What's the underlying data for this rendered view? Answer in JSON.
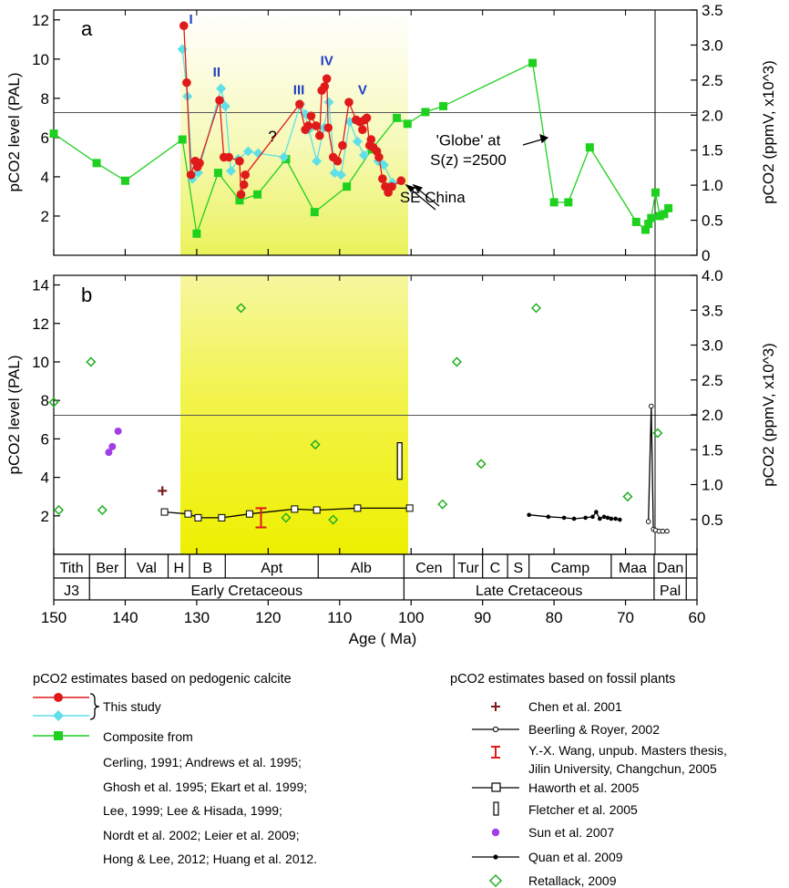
{
  "chart_data": [
    {
      "type": "line",
      "panel_label": "a",
      "xlabel": "Age ( Ma)",
      "x_range": [
        150,
        60
      ],
      "ylabel_left": "pCO2 level (PAL)",
      "ylabel_right": "pCO2 (ppmV, x10^3)",
      "ylim_left": [
        0,
        12.5
      ],
      "ylim_right": [
        0,
        3.5
      ],
      "yticks_left": [
        "2",
        "4",
        "6",
        "8",
        "10",
        "12"
      ],
      "yticks_right": [
        "0",
        "0.5",
        "1.0",
        "1.5",
        "2.0",
        "2.5",
        "3.0",
        "3.5"
      ],
      "reference_line_pal": 7.5,
      "shaded_interval_ma": [
        132,
        101
      ],
      "vertical_line_ma": 66,
      "series": [
        {
          "color": "#e01a1a",
          "x": [
            131.8,
            131.4,
            130.8,
            130.2,
            129.9,
            129.6,
            126.8,
            126.2,
            125.5,
            124.0,
            123.8,
            123.4,
            123.2,
            115.6,
            114.8,
            114.4,
            114.0,
            113.3,
            112.8,
            112.5,
            112.1,
            111.8,
            111.6,
            110.9,
            110.3,
            109.6,
            108.7,
            107.7,
            107.2,
            106.8,
            106.5,
            106.2,
            105.8,
            105.6,
            105.3,
            104.8,
            104.5,
            104.0,
            103.6,
            103.2,
            102.7,
            101.4
          ],
          "y": [
            11.7,
            8.8,
            4.1,
            4.8,
            4.5,
            4.7,
            7.9,
            5.0,
            5.0,
            4.8,
            3.1,
            3.6,
            4.1,
            7.7,
            6.4,
            6.6,
            7.1,
            6.6,
            6.1,
            8.4,
            8.6,
            9.0,
            6.5,
            5.0,
            4.8,
            5.6,
            7.8,
            6.9,
            6.8,
            6.4,
            6.9,
            7.0,
            5.6,
            5.9,
            5.5,
            5.3,
            5.0,
            3.9,
            3.5,
            3.2,
            3.5,
            3.8
          ]
        },
        {
          "color": "#5fe0e8",
          "x": [
            132.0,
            131.3,
            130.6,
            129.8,
            126.6,
            126.0,
            125.2,
            124.2,
            122.8,
            121.4,
            117.8,
            115.5,
            114.8,
            114.3,
            113.2,
            112.2,
            111.5,
            110.7,
            109.8,
            108.6,
            107.5,
            106.6,
            105.6,
            104.6,
            103.8,
            102.6
          ],
          "y": [
            10.5,
            8.1,
            3.9,
            4.2,
            8.5,
            7.6,
            4.3,
            4.9,
            5.3,
            5.2,
            5.0,
            7.7,
            7.2,
            6.4,
            4.8,
            6.5,
            7.8,
            4.2,
            4.1,
            6.8,
            5.8,
            5.1,
            5.6,
            4.8,
            4.6,
            3.7
          ]
        },
        {
          "color": "#1fd11f",
          "x": [
            150,
            144,
            140,
            132,
            130,
            127,
            124,
            121.5,
            117.5,
            113.5,
            109,
            105.5,
            102,
            100.5,
            98,
            95.5,
            83,
            80,
            78,
            75,
            68.5,
            67.2,
            66.8,
            66.4,
            65.8,
            65.2,
            64.6,
            64
          ],
          "y": [
            6.2,
            4.7,
            3.8,
            5.9,
            1.1,
            4.2,
            2.8,
            3.1,
            4.9,
            2.2,
            3.5,
            5.4,
            7.0,
            6.7,
            7.3,
            7.6,
            9.8,
            2.7,
            2.7,
            5.5,
            1.7,
            1.3,
            1.6,
            1.9,
            3.2,
            2.0,
            2.1,
            2.4
          ]
        }
      ],
      "annotations": [
        {
          "text": "I",
          "x": 130.8,
          "y": 11.8
        },
        {
          "text": "II",
          "x": 127.2,
          "y": 9.1
        },
        {
          "text": "III",
          "x": 115.7,
          "y": 8.2
        },
        {
          "text": "IV",
          "x": 111.8,
          "y": 9.7
        },
        {
          "text": "V",
          "x": 106.8,
          "y": 8.2
        },
        {
          "text": "?",
          "x": 119.4,
          "y": 5.8
        },
        {
          "text": "SE China",
          "x": 97.0,
          "y": 2.7
        },
        {
          "text": "'Globe' at",
          "x": 92.0,
          "y": 5.6
        },
        {
          "text": "S(z) =2500",
          "x": 92.0,
          "y": 4.6
        }
      ]
    },
    {
      "type": "scatter",
      "panel_label": "b",
      "xlabel": "Age ( Ma)",
      "x_range": [
        150,
        60
      ],
      "xticks": [
        "150",
        "140",
        "130",
        "120",
        "110",
        "100",
        "90",
        "80",
        "70",
        "60"
      ],
      "ylabel_left": "pCO2 level (PAL)",
      "ylabel_right": "pCO2 (ppmV, x10^3)",
      "ylim_left": [
        0,
        14.5
      ],
      "ylim_right": [
        0,
        4.0
      ],
      "yticks_left": [
        "2",
        "4",
        "6",
        "8",
        "10",
        "12",
        "14"
      ],
      "yticks_right": [
        "0.5",
        "1.0",
        "1.5",
        "2.0",
        "2.5",
        "3.0",
        "3.5",
        "4.0"
      ],
      "reference_line_pal": 7.5,
      "series": [
        {
          "marker": "cross",
          "color": "#7a1c1c",
          "x": [
            134.8
          ],
          "y": [
            3.3
          ]
        },
        {
          "marker": "line-open-square",
          "color": "#000000",
          "x": [
            134.5,
            131.2,
            129.8,
            126.5,
            122.6,
            116.3,
            113.2,
            107.5,
            100.2
          ],
          "y": [
            2.2,
            2.1,
            1.9,
            1.9,
            2.1,
            2.35,
            2.3,
            2.4,
            2.4
          ]
        },
        {
          "marker": "line-dot",
          "color": "#000000",
          "x": [
            83.5,
            80.8,
            78.6,
            77.2,
            75.6,
            74.6,
            74.1,
            73.6,
            73.0,
            72.5,
            72.0,
            71.4,
            70.8
          ],
          "y": [
            2.05,
            1.95,
            1.9,
            1.85,
            1.9,
            1.95,
            2.2,
            1.85,
            1.95,
            1.9,
            1.85,
            1.85,
            1.8
          ]
        },
        {
          "marker": "line-open-circle",
          "color": "#000000",
          "x": [
            66.8,
            66.4,
            66.1,
            65.8,
            65.3,
            64.8,
            64.2
          ],
          "y": [
            1.7,
            7.7,
            1.3,
            1.25,
            1.2,
            1.2,
            1.2
          ]
        },
        {
          "marker": "purple-dot",
          "color": "#a23fe3",
          "x": [
            142.3,
            141.8,
            141.0
          ],
          "y": [
            5.3,
            5.6,
            6.4
          ]
        },
        {
          "marker": "open-diamond",
          "color": "#21b021",
          "x": [
            150,
            149.3,
            144.8,
            143.2,
            123.8,
            117.5,
            113.4,
            110.9,
            95.6,
            93.6,
            90.2,
            82.5,
            69.7,
            65.5
          ],
          "y": [
            7.9,
            2.3,
            10.0,
            2.3,
            12.8,
            1.9,
            5.7,
            1.8,
            2.6,
            10.0,
            4.7,
            12.8,
            3.0,
            6.3
          ]
        },
        {
          "marker": "red-bar",
          "color": "#e01a1a",
          "x": [
            121
          ],
          "y_low": [
            1.4
          ],
          "y_high": [
            2.4
          ]
        },
        {
          "marker": "open-rect",
          "color": "#000000",
          "x": [
            101.6
          ],
          "y_low": [
            3.9
          ],
          "y_high": [
            5.8
          ]
        }
      ]
    }
  ],
  "timescale": {
    "stages": [
      {
        "label": "Tith",
        "from": 150,
        "to": 145
      },
      {
        "label": "Ber",
        "from": 145,
        "to": 140
      },
      {
        "label": "Val",
        "from": 140,
        "to": 134
      },
      {
        "label": "H",
        "from": 134,
        "to": 131
      },
      {
        "label": "B",
        "from": 131,
        "to": 126
      },
      {
        "label": "Apt",
        "from": 126,
        "to": 113
      },
      {
        "label": "Alb",
        "from": 113,
        "to": 101
      },
      {
        "label": "Cen",
        "from": 101,
        "to": 94
      },
      {
        "label": "Tur",
        "from": 94,
        "to": 90
      },
      {
        "label": "C",
        "from": 90,
        "to": 86.5
      },
      {
        "label": "S",
        "from": 86.5,
        "to": 83.5
      },
      {
        "label": "Camp",
        "from": 83.5,
        "to": 72
      },
      {
        "label": "Maa",
        "from": 72,
        "to": 66
      },
      {
        "label": "Dan",
        "from": 66,
        "to": 61.5
      }
    ],
    "epochs": [
      {
        "label": "J3",
        "from": 150,
        "to": 145
      },
      {
        "label": "Early Cretaceous",
        "from": 145,
        "to": 101
      },
      {
        "label": "Late Cretaceous",
        "from": 101,
        "to": 66
      },
      {
        "label": "Pal",
        "from": 66,
        "to": 61.5
      }
    ]
  },
  "legend_left": {
    "heading": "pCO2 estimates based on pedogenic calcite",
    "this_study": "This study",
    "composite_title": "Composite from",
    "composite_lines": [
      "Cerling, 1991;  Andrews et al. 1995;",
      "Ghosh et al. 1995; Ekart et al. 1999;",
      "Lee, 1999; Lee & Hisada, 1999;",
      "Nordt et al. 2002;  Leier et al. 2009;",
      "Hong & Lee, 2012; Huang et al. 2012."
    ]
  },
  "legend_right": {
    "heading": "pCO2 estimates based on fossil plants",
    "items": [
      "Chen et al. 2001",
      "Beerling & Royer, 2002",
      "Y.-X. Wang, unpub. Masters thesis,",
      "Haworth et al. 2005",
      "Fletcher et al. 2005",
      "Sun et al. 2007",
      "Quan et al. 2009",
      "Retallack, 2009"
    ],
    "wang_line2": "Jilin University, Changchun, 2005"
  }
}
